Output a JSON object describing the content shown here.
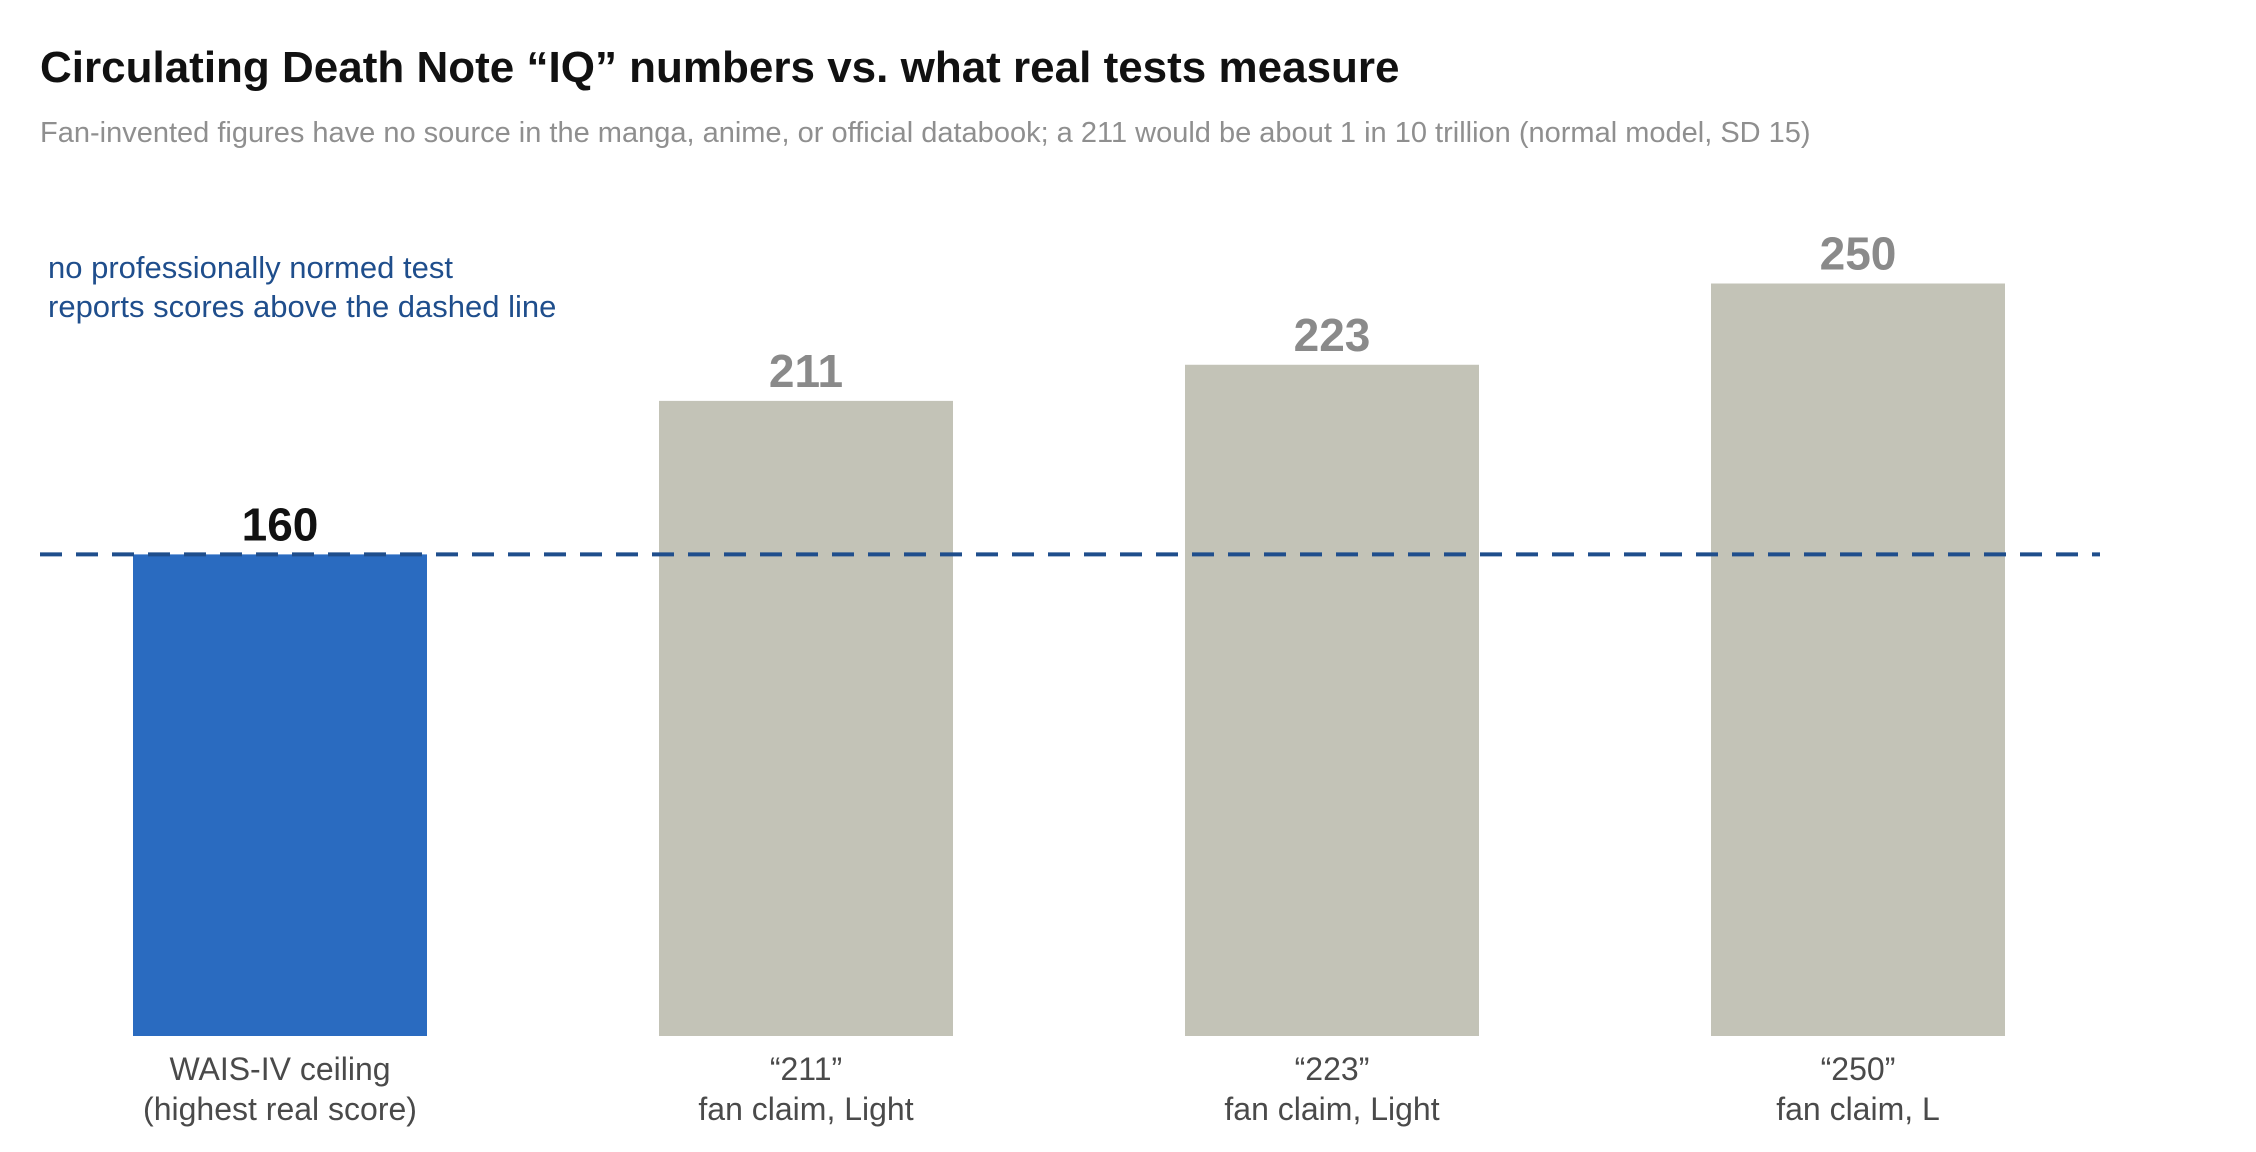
{
  "chart_data": {
    "type": "bar",
    "title": "Circulating Death Note “IQ” numbers vs. what real tests measure",
    "subtitle": "Fan-invented figures have no source in the manga, anime, or official databook; a 211 would be about 1 in 10 trillion (normal model, SD 15)",
    "categories": [
      {
        "line1": "WAIS-IV ceiling",
        "line2": "(highest real score)"
      },
      {
        "line1": "“211”",
        "line2": "fan claim, Light"
      },
      {
        "line1": "“223”",
        "line2": "fan claim, Light"
      },
      {
        "line1": "“250”",
        "line2": "fan claim, L"
      }
    ],
    "values": [
      160,
      211,
      223,
      250
    ],
    "bar_colors": [
      "#2a6bc0",
      "#c3c3b7",
      "#c3c3b7",
      "#c3c3b7"
    ],
    "value_label_colors": [
      "#111111",
      "#8a8a8a",
      "#8a8a8a",
      "#8a8a8a"
    ],
    "reference_line": {
      "value": 160,
      "style": "dashed",
      "color": "#1f4e8c",
      "note_lines": [
        "no professionally normed test",
        "reports scores above the dashed line"
      ]
    },
    "ylim": [
      0,
      260
    ],
    "xlabel": "",
    "ylabel": "",
    "grid": false,
    "legend": "none"
  }
}
